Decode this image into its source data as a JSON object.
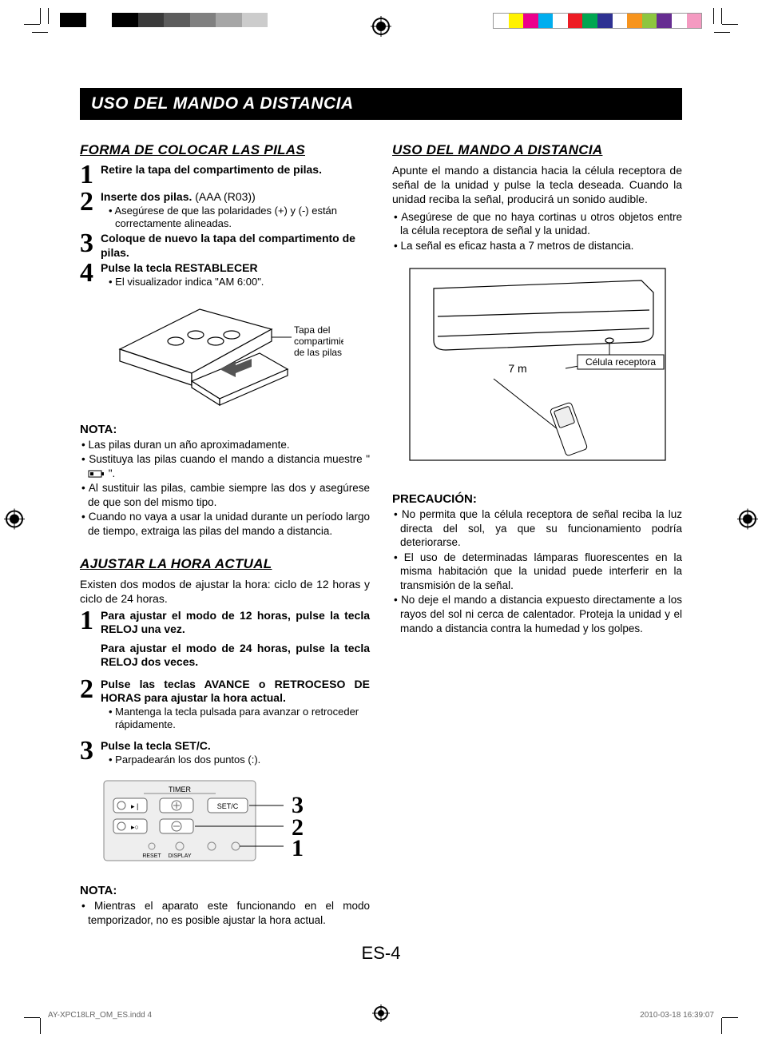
{
  "print_marks": {
    "gray_shades": [
      "#000000",
      "#ffffff",
      "#000000",
      "#3a3a3a",
      "#5c5c5c",
      "#808080",
      "#a6a6a6",
      "#cccccc"
    ],
    "color_swatches": [
      "#ffffff",
      "#fff200",
      "#ec008c",
      "#00aeef",
      "#ffffff",
      "#ed1c24",
      "#00a651",
      "#2e3192",
      "#ffffff",
      "#f7941d",
      "#8dc63f",
      "#662d91",
      "#ffffff",
      "#f49ac1"
    ]
  },
  "title_bar": "USO DEL MANDO A DISTANCIA",
  "left": {
    "section1": {
      "heading": "FORMA DE COLOCAR LAS PILAS",
      "steps": [
        {
          "n": "1",
          "bold": "Retire la tapa del compartimento de pilas.",
          "sub": ""
        },
        {
          "n": "2",
          "bold": "Inserte dos pilas.",
          "plain": " (AAA (R03))",
          "sub": "• Asegúrese de que las polaridades (+) y (-) están correctamente alineadas."
        },
        {
          "n": "3",
          "bold": "Coloque de nuevo la tapa del compartimento de pilas.",
          "sub": ""
        },
        {
          "n": "4",
          "bold": "Pulse la tecla RESTABLECER",
          "sub": "• El visualizador indica \"AM 6:00\"."
        }
      ],
      "diagram_label": "Tapa del\ncompartimiento\nde las pilas",
      "note_heading": "NOTA:",
      "notes": [
        "Las pilas duran un año aproximadamente.",
        "Sustituya las pilas cuando el mando a distancia muestre \" 🔋 \".",
        "Al sustituir las pilas, cambie siempre las dos y asegúrese de que son del mismo tipo.",
        "Cuando no vaya a usar la unidad durante un período largo de tiempo, extraiga las pilas del mando a distancia."
      ]
    },
    "section2": {
      "heading": "AJUSTAR LA HORA ACTUAL",
      "intro": "Existen dos modos de ajustar la hora: ciclo de 12 horas y ciclo de 24 horas.",
      "steps": [
        {
          "n": "1",
          "bold1": "Para ajustar el modo de 12 horas, pulse la tecla RELOJ una vez.",
          "bold2": "Para ajustar el modo de 24 horas, pulse la tecla RELOJ dos veces."
        },
        {
          "n": "2",
          "bold": "Pulse las teclas AVANCE o RETROCESO DE HORAS para ajustar la hora actual.",
          "sub": "• Mantenga la tecla pulsada para avanzar o retroceder rápidamente."
        },
        {
          "n": "3",
          "bold": "Pulse la tecla SET/C.",
          "sub": "• Parpadearán los dos puntos (:)."
        }
      ],
      "remote_labels": {
        "timer": "TIMER",
        "setc": "SET/C",
        "reset": "RESET",
        "display": "DISPLAY",
        "n1": "1",
        "n2": "2",
        "n3": "3"
      },
      "note_heading": "NOTA:",
      "notes": [
        "Mientras el aparato este funcionando en el modo temporizador, no es posible ajustar la hora actual."
      ]
    }
  },
  "right": {
    "section1": {
      "heading": "USO DEL MANDO A DISTANCIA",
      "intro": "Apunte el mando a distancia hacia la célula receptora de señal de la unidad y pulse la tecla deseada. Cuando la unidad reciba la señal, producirá un sonido audible.",
      "bullets": [
        "Asegúrese de que no haya cortinas u otros objetos entre la célula receptora de señal y la unidad.",
        "La señal es eficaz hasta a 7 metros de distancia."
      ],
      "diagram": {
        "distance": "7 m",
        "receiver": "Célula receptora"
      }
    },
    "section2": {
      "heading": "PRECAUCIÓN:",
      "bullets": [
        "No permita que la célula receptora de señal reciba la luz directa del sol, ya que su funcionamiento podría deteriorarse.",
        "El uso de determinadas lámparas fluorescentes en la misma habitación que la unidad puede interferir en la transmisión de la señal.",
        "No deje el mando a distancia expuesto directamente a los rayos del sol ni cerca de calentador. Proteja la unidad y el mando a distancia contra la humedad y los golpes."
      ]
    }
  },
  "page_number": "ES-4",
  "footer": {
    "left": "AY-XPC18LR_OM_ES.indd   4",
    "right": "2010-03-18   16:39:07"
  }
}
